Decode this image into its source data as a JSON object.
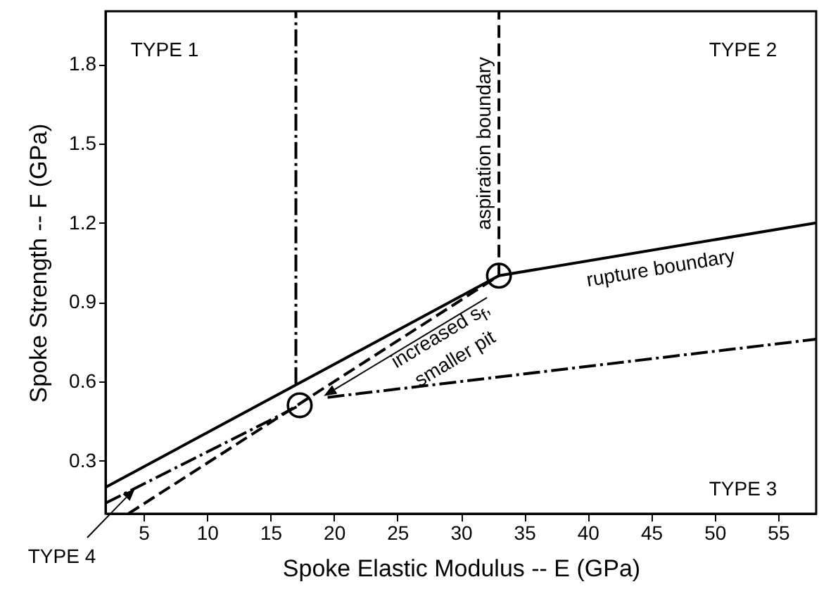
{
  "chart_data": {
    "type": "line",
    "xlabel": "Spoke Elastic Modulus -- E (GPa)",
    "ylabel": "Spoke Strength -- F (GPa)",
    "xlim": [
      2,
      58
    ],
    "ylim": [
      0.1,
      2.0
    ],
    "xticks": [
      5,
      10,
      15,
      20,
      25,
      30,
      35,
      40,
      45,
      50,
      55
    ],
    "yticks": [
      0.3,
      0.6,
      0.9,
      1.2,
      1.5,
      1.8
    ],
    "series": [
      {
        "name": "rupture boundary",
        "color": "#000000",
        "x": [
          2,
          33,
          58
        ],
        "values": [
          0.2,
          1.0,
          1.2
        ],
        "line_style": "solid"
      },
      {
        "name": "aspiration boundary",
        "color": "#000000",
        "x": [
          33,
          33
        ],
        "values": [
          1.0,
          2.0
        ],
        "line_style": "dashed"
      },
      {
        "color": "#000000",
        "x": [
          3.8,
          33
        ],
        "values": [
          0.1,
          1.0
        ],
        "line_style": "dashed"
      },
      {
        "color": "#000000",
        "x": [
          17,
          17
        ],
        "values": [
          0.59,
          2.0
        ],
        "line_style": "dotted"
      },
      {
        "color": "#000000",
        "x": [
          2,
          17.3
        ],
        "values": [
          0.14,
          0.51
        ],
        "line_style": "dotted"
      },
      {
        "color": "#000000",
        "x": [
          19.5,
          58
        ],
        "values": [
          0.54,
          0.76
        ],
        "line_style": "dotted"
      },
      {
        "type": "scatter",
        "color": "#000000",
        "x": [
          17.3,
          33
        ],
        "values": [
          0.51,
          1.0
        ],
        "marker": "circle"
      }
    ],
    "annotations": [
      "TYPE 1",
      "TYPE 2",
      "TYPE 3",
      "TYPE 4",
      {
        "text": "increased s$_{f}$,\nsmaller pit",
        "x": 19.2,
        "y": 0.545
      }
    ],
    "grid": false,
    "legend": false
  }
}
